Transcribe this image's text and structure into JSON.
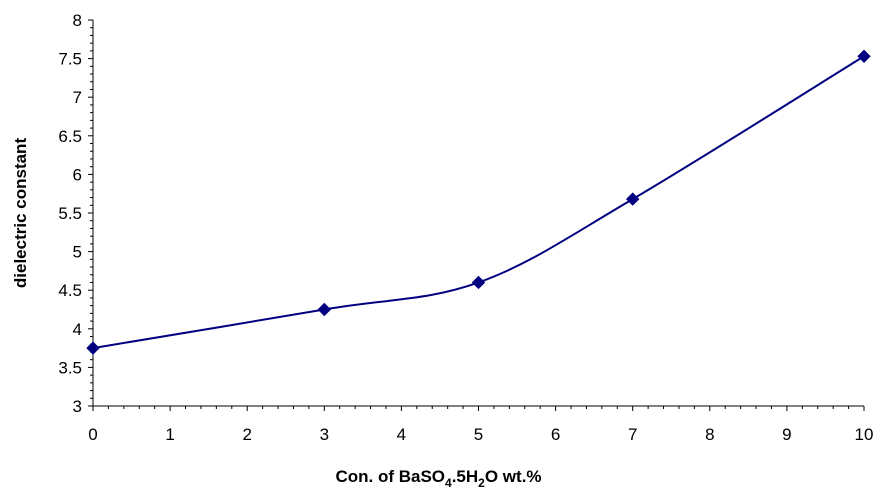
{
  "chart_data": {
    "type": "line",
    "xlabel_parts": [
      "Con. of BaSO",
      "4",
      ".5H",
      "2",
      "O wt.%"
    ],
    "ylabel": "dielectric constant",
    "xlim": [
      0,
      10
    ],
    "ylim": [
      3,
      8
    ],
    "x_ticks": [
      "0",
      "1",
      "2",
      "3",
      "4",
      "5",
      "6",
      "7",
      "8",
      "9",
      "10"
    ],
    "y_ticks": [
      "3",
      "3.5",
      "4",
      "4.5",
      "5",
      "5.5",
      "6",
      "6.5",
      "7",
      "7.5",
      "8"
    ],
    "grid": false,
    "series": [
      {
        "color": "#000080",
        "marker": "diamond",
        "smoothed": true,
        "x": [
          0,
          3,
          5,
          7,
          10
        ],
        "y": [
          3.75,
          4.25,
          4.6,
          5.68,
          7.53
        ]
      }
    ]
  }
}
